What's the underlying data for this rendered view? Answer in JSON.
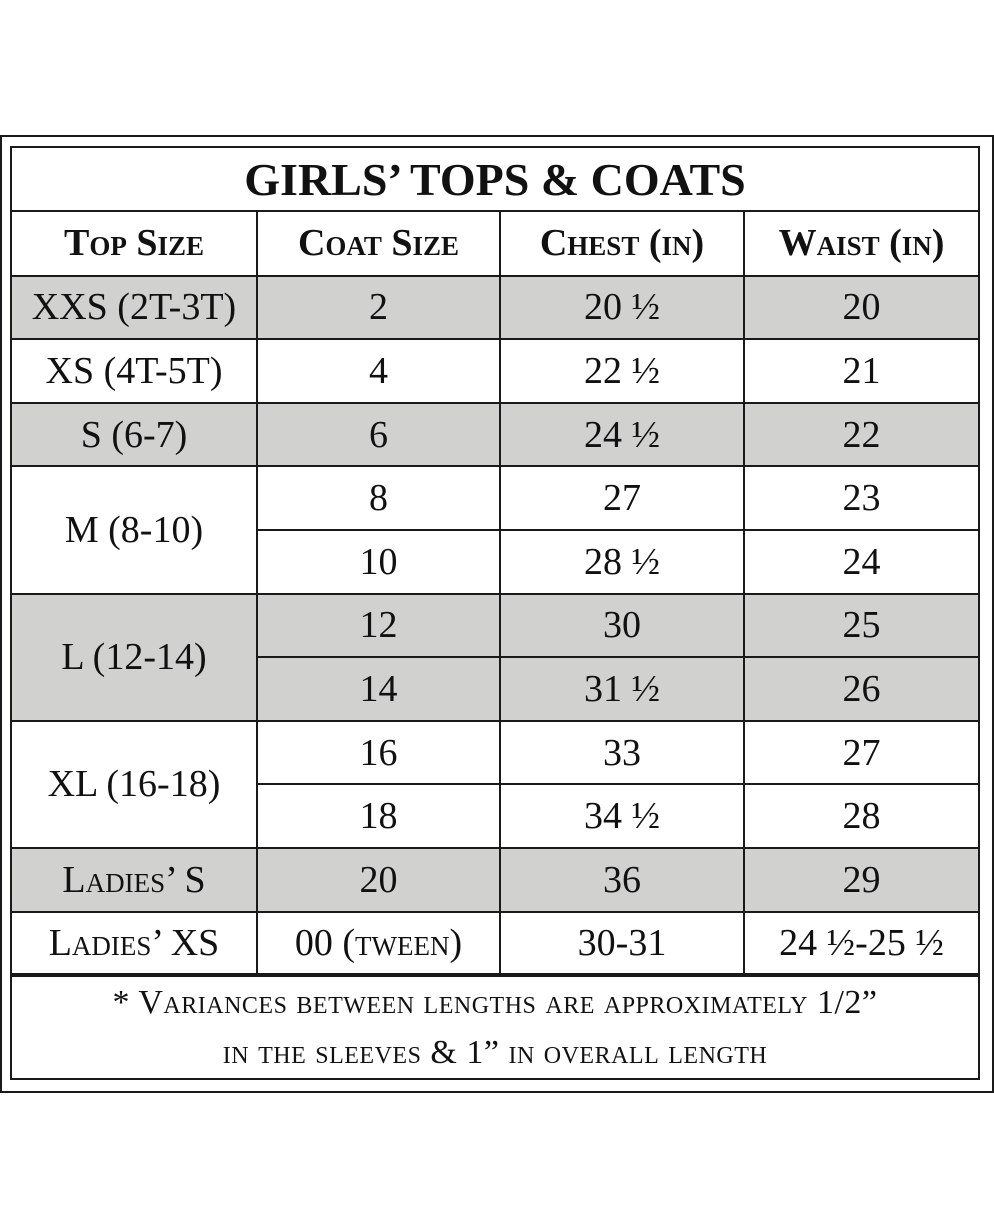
{
  "title": "GIRLS’ TOPS & COATS",
  "headers": [
    "Top Size",
    "Coat Size",
    "Chest (in)",
    "Waist (in)"
  ],
  "rows": [
    {
      "top_size": "XXS (2T-3T)",
      "coat_size": "2",
      "chest": "20 ½",
      "waist": "20"
    },
    {
      "top_size": "XS (4T-5T)",
      "coat_size": "4",
      "chest": "22 ½",
      "waist": "21"
    },
    {
      "top_size": "S (6-7)",
      "coat_size": "6",
      "chest": "24 ½",
      "waist": "22"
    },
    {
      "top_size": "M (8-10)",
      "coat_size": "8",
      "chest": "27",
      "waist": "23"
    },
    {
      "top_size": "",
      "coat_size": "10",
      "chest": "28 ½",
      "waist": "24"
    },
    {
      "top_size": "L (12-14)",
      "coat_size": "12",
      "chest": "30",
      "waist": "25"
    },
    {
      "top_size": "",
      "coat_size": "14",
      "chest": "31 ½",
      "waist": "26"
    },
    {
      "top_size": "XL (16-18)",
      "coat_size": "16",
      "chest": "33",
      "waist": "27"
    },
    {
      "top_size": "",
      "coat_size": "18",
      "chest": "34 ½",
      "waist": "28"
    },
    {
      "top_size": "Ladies’ S",
      "coat_size": "20",
      "chest": "36",
      "waist": "29"
    },
    {
      "top_size": "Ladies’ XS",
      "coat_size": "00 (tween)",
      "chest": "30-31",
      "waist": "24 ½-25 ½"
    }
  ],
  "footnote": {
    "line1": "* Variances between lengths are approximately 1/2”",
    "line2": "in the sleeves & 1” in overall length"
  },
  "colors": {
    "shade": "#d1d1d0",
    "border": "#1a1a1a",
    "background": "#ffffff"
  }
}
